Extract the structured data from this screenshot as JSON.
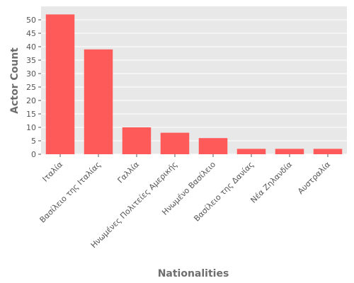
{
  "chart_data": {
    "type": "bar",
    "title": "",
    "xlabel": "Nationalities",
    "ylabel": "Actor Count",
    "categories": [
      "Ιταλία",
      "Βασίλειο της Ιταλίας",
      "Γαλλία",
      "Ηνωμένες Πολιτείες Αμερικής",
      "Ηνωμένο Βασίλειο",
      "Βασίλειο της Δανίας",
      "Νέα Ζηλανδία",
      "Αυστραλία"
    ],
    "values": [
      52,
      39,
      10,
      8,
      6,
      2,
      2,
      2
    ],
    "ylim": [
      0,
      55
    ],
    "yticks": [
      0,
      5,
      10,
      15,
      20,
      25,
      30,
      35,
      40,
      45,
      50
    ],
    "grid": true,
    "colors": {
      "bar": "#ff5a5a",
      "plot_background": "#e8e8e8",
      "grid": "#ffffff"
    }
  }
}
